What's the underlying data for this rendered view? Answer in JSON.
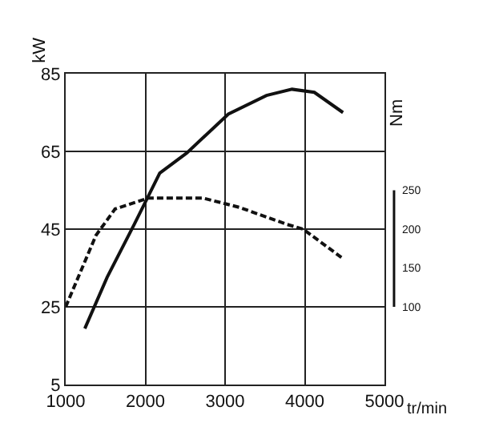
{
  "chart_data": {
    "type": "line",
    "xlabel": "tr/min",
    "ylabel": "kW",
    "y2label": "Nm",
    "series": [
      {
        "color": "#111111",
        "line_style": "solid",
        "x": [
          1240,
          1520,
          1860,
          2180,
          2520,
          3040,
          3520,
          3840,
          4120,
          4480
        ],
        "values": [
          19.4,
          32.6,
          46.2,
          59.4,
          64.6,
          74.6,
          79.4,
          81,
          80.2,
          75
        ]
      },
      {
        "color": "#111111",
        "line_style": "dashed",
        "axis": "y2",
        "x": [
          1000,
          1380,
          1620,
          2040,
          2720,
          3180,
          3780,
          3980,
          4480
        ],
        "values": [
          100,
          192,
          226,
          240,
          240,
          228,
          206,
          200,
          162
        ]
      }
    ],
    "xlim": [
      1000,
      5000
    ],
    "xticks": [
      1000,
      2000,
      3000,
      4000,
      5000
    ],
    "ylim": [
      5,
      85
    ],
    "yticks": [
      5,
      25,
      45,
      65,
      85
    ],
    "y2lim": [
      0,
      400
    ],
    "y2ticks": [
      100,
      150,
      200,
      250
    ],
    "grid": true,
    "marker": "none"
  }
}
